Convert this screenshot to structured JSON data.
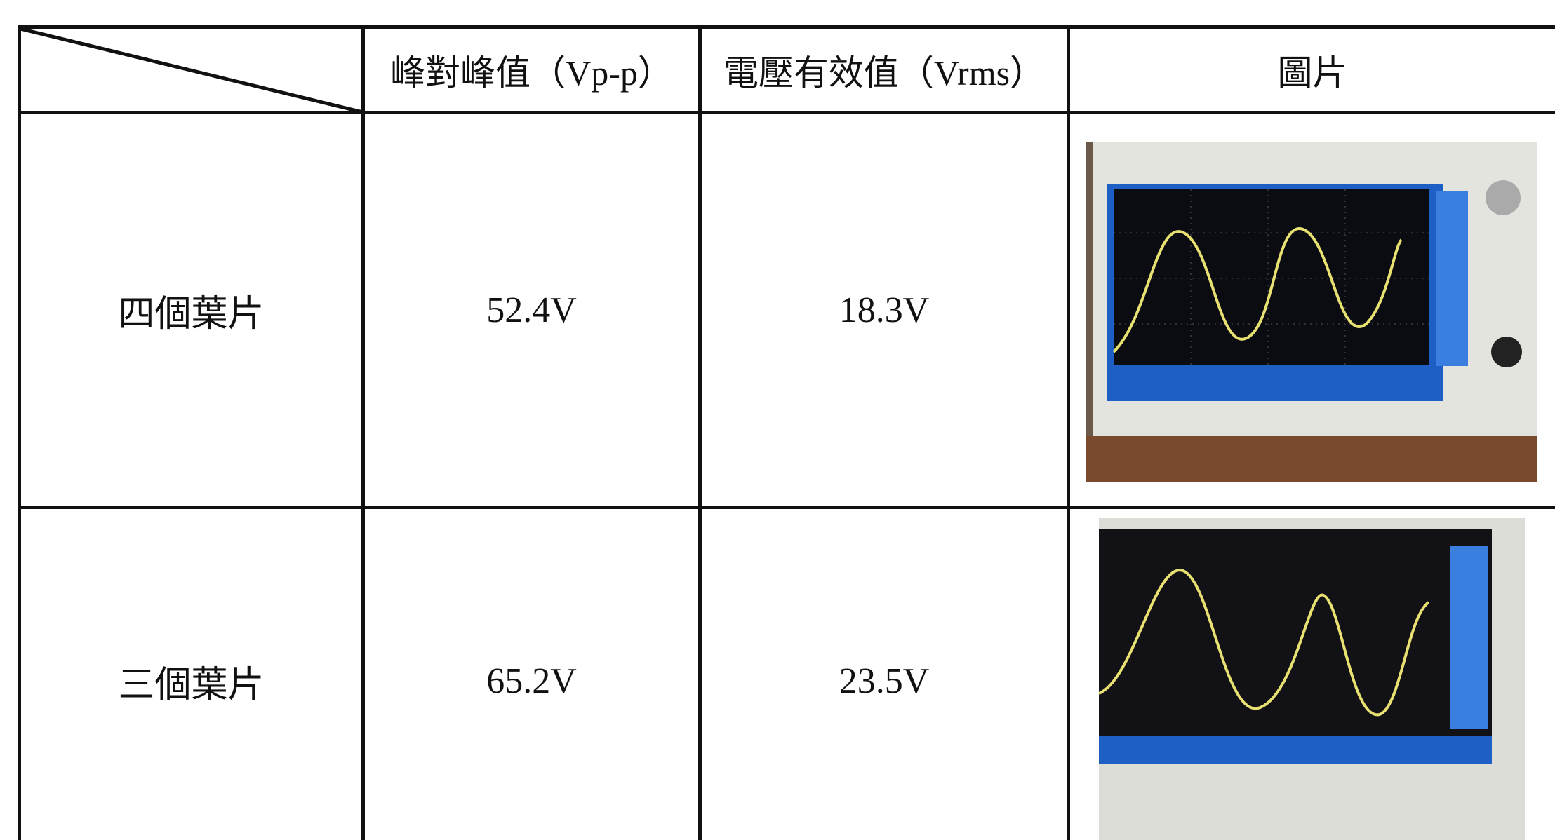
{
  "table": {
    "header": [
      "峰對峰值（Vp-p）",
      "電壓有效值（Vrms）",
      "圖片"
    ],
    "rows": [
      [
        "四個葉片",
        "52.4V",
        "18.3V"
      ],
      [
        "三個葉片",
        "65.2V",
        "23.5V"
      ]
    ]
  }
}
